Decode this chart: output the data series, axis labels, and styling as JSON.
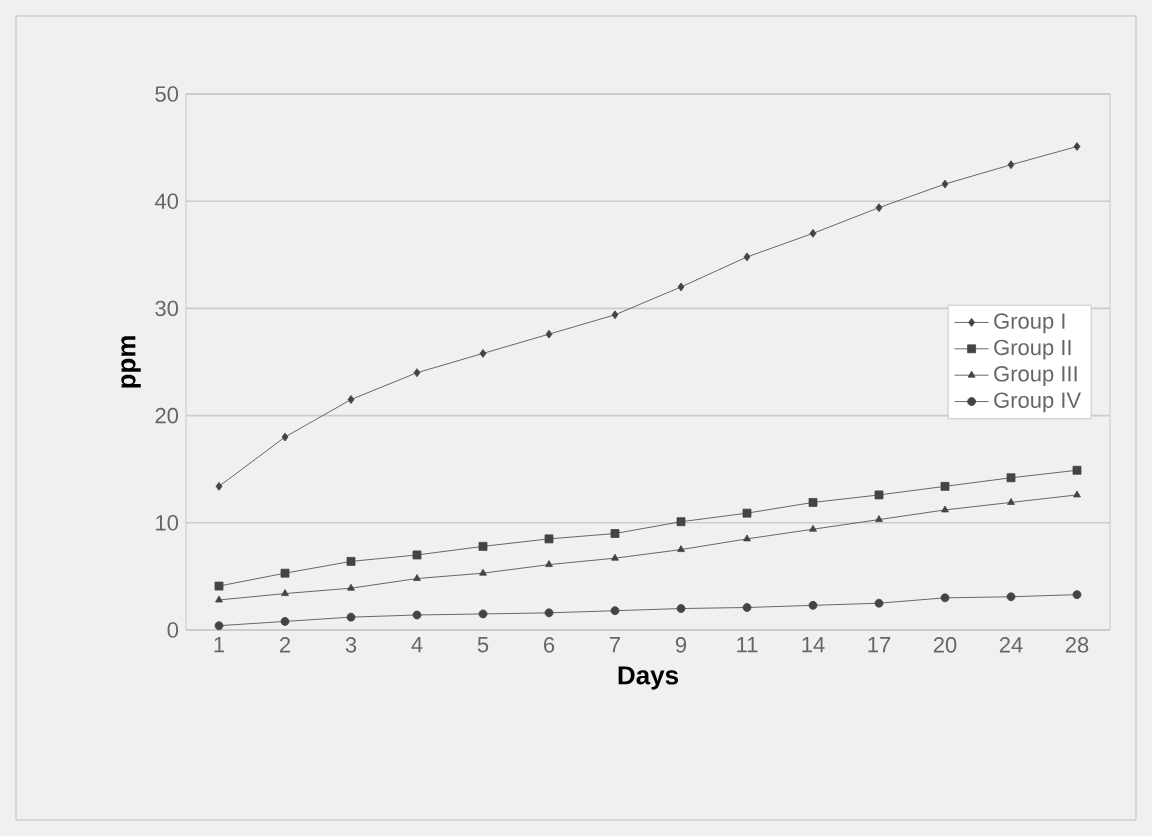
{
  "chart_data": {
    "type": "line",
    "xlabel": "Days",
    "ylabel": "ppm",
    "categories": [
      "1",
      "2",
      "3",
      "4",
      "5",
      "6",
      "7",
      "9",
      "11",
      "14",
      "17",
      "20",
      "24",
      "28"
    ],
    "series": [
      {
        "name": "Group I",
        "color": "#444444",
        "marker": "diamond",
        "values": [
          13.4,
          18.0,
          21.5,
          24.0,
          25.8,
          27.6,
          29.4,
          32.0,
          34.8,
          37.0,
          39.4,
          41.6,
          43.4,
          45.1
        ]
      },
      {
        "name": "Group II",
        "color": "#444444",
        "marker": "square",
        "values": [
          4.1,
          5.3,
          6.4,
          7.0,
          7.8,
          8.5,
          9.0,
          10.1,
          10.9,
          11.9,
          12.6,
          13.4,
          14.2,
          14.9
        ]
      },
      {
        "name": "Group III",
        "color": "#444444",
        "marker": "triangle",
        "values": [
          2.8,
          3.4,
          3.9,
          4.8,
          5.3,
          6.1,
          6.7,
          7.5,
          8.5,
          9.4,
          10.3,
          11.2,
          11.9,
          12.6
        ]
      },
      {
        "name": "Group IV",
        "color": "#444444",
        "marker": "circle",
        "values": [
          0.4,
          0.8,
          1.2,
          1.4,
          1.5,
          1.6,
          1.8,
          2.0,
          2.1,
          2.3,
          2.5,
          3.0,
          3.1,
          3.3
        ]
      }
    ],
    "ylim": [
      0,
      50
    ],
    "yticks": [
      0,
      10,
      20,
      30,
      40,
      50
    ],
    "grid": "y",
    "legend": "right"
  }
}
